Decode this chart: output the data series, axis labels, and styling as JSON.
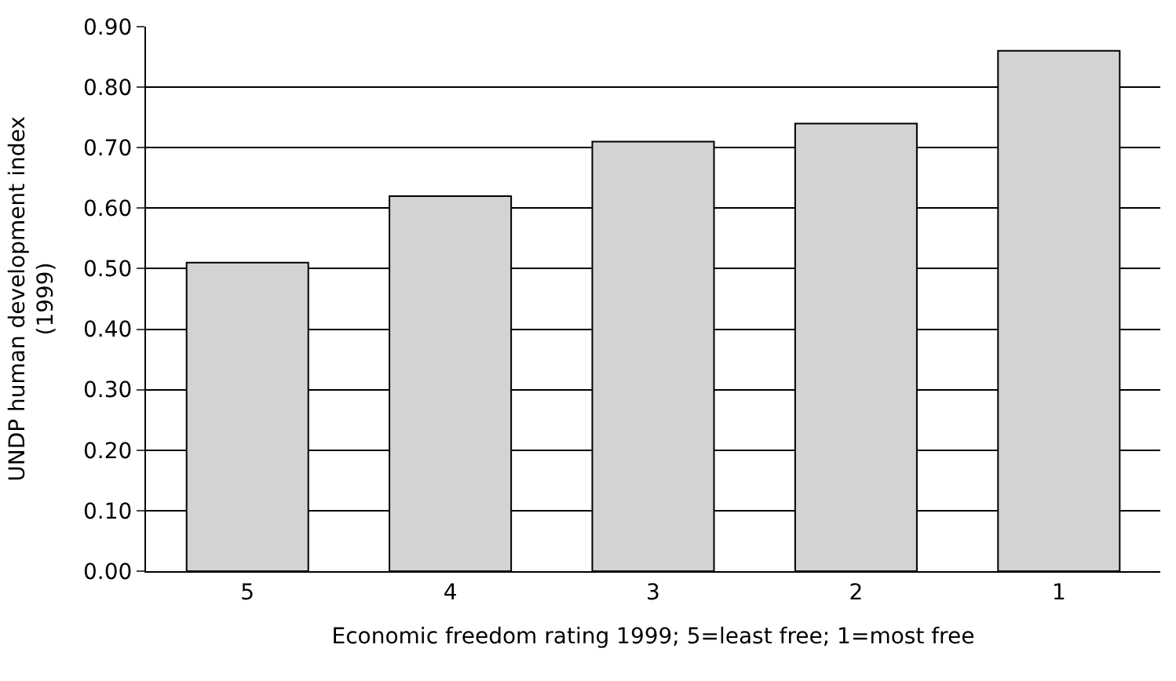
{
  "chart_data": {
    "type": "bar",
    "xlabel": "Economic freedom rating 1999; 5=least free; 1=most free",
    "ylabel": "UNDP human development index\n(1999)",
    "categories": [
      "5",
      "4",
      "3",
      "2",
      "1"
    ],
    "values": [
      0.51,
      0.62,
      0.71,
      0.74,
      0.86
    ],
    "color": "#d3d3d5",
    "ylim": [
      0,
      0.9
    ],
    "yticks": [
      {
        "value": 0,
        "label": "0.00"
      },
      {
        "value": 0.1,
        "label": "0.10"
      },
      {
        "value": 0.2,
        "label": "0.20"
      },
      {
        "value": 0.3,
        "label": "0.30"
      },
      {
        "value": 0.4,
        "label": "0.40"
      },
      {
        "value": 0.5,
        "label": "0.50"
      },
      {
        "value": 0.6,
        "label": "0.60"
      },
      {
        "value": 0.7,
        "label": "0.70"
      },
      {
        "value": 0.8,
        "label": "0.80"
      },
      {
        "value": 0.9,
        "label": "0.90"
      }
    ],
    "grid": "y"
  }
}
